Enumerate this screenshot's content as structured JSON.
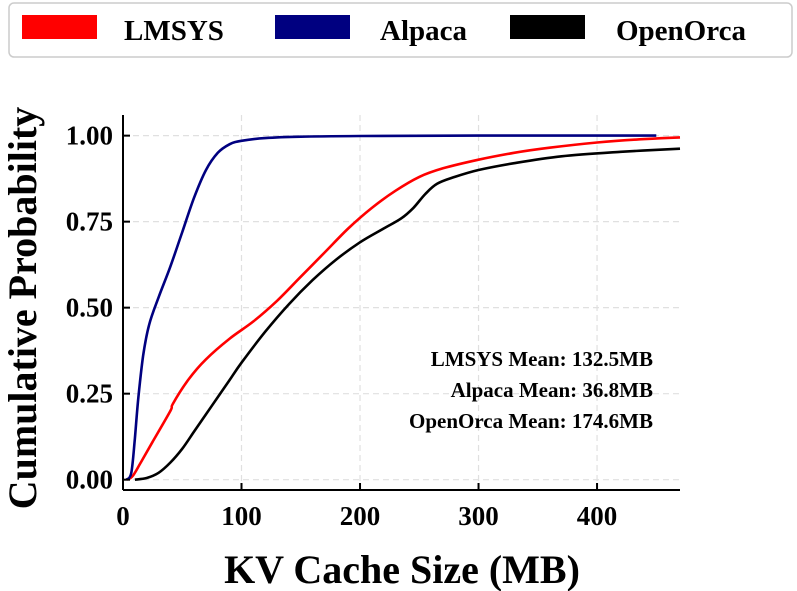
{
  "chart_data": {
    "type": "line",
    "title": "",
    "xlabel": "KV Cache Size (MB)",
    "ylabel": "Cumulative Probability",
    "xlim": [
      0,
      470
    ],
    "ylim": [
      -0.03,
      1.06
    ],
    "xticks": [
      0,
      100,
      200,
      300,
      400
    ],
    "yticks": [
      0.0,
      0.25,
      0.5,
      0.75,
      1.0
    ],
    "xtick_labels": [
      "0",
      "100",
      "200",
      "300",
      "400"
    ],
    "ytick_labels": [
      "0.00",
      "0.25",
      "0.50",
      "0.75",
      "1.00"
    ],
    "grid": true,
    "legend_position": "top",
    "series": [
      {
        "name": "LMSYS",
        "color": "#ff0000",
        "x": [
          3,
          8,
          15,
          25,
          40,
          42,
          55,
          70,
          90,
          110,
          130,
          150,
          170,
          190,
          210,
          230,
          250,
          270,
          300,
          330,
          360,
          400,
          440,
          470
        ],
        "y": [
          0.0,
          0.01,
          0.05,
          0.11,
          0.2,
          0.22,
          0.29,
          0.35,
          0.41,
          0.46,
          0.52,
          0.59,
          0.66,
          0.73,
          0.79,
          0.84,
          0.88,
          0.905,
          0.93,
          0.95,
          0.965,
          0.98,
          0.99,
          0.995
        ]
      },
      {
        "name": "Alpaca",
        "color": "#000080",
        "x": [
          3,
          7,
          10,
          13,
          17,
          22,
          30,
          40,
          50,
          60,
          70,
          80,
          90,
          100,
          120,
          150,
          200,
          300,
          450
        ],
        "y": [
          0.0,
          0.02,
          0.12,
          0.24,
          0.36,
          0.45,
          0.53,
          0.62,
          0.72,
          0.82,
          0.9,
          0.95,
          0.975,
          0.985,
          0.993,
          0.997,
          0.999,
          1.0,
          1.0
        ]
      },
      {
        "name": "OpenOrca",
        "color": "#000000",
        "x": [
          10,
          20,
          30,
          40,
          50,
          60,
          70,
          80,
          90,
          100,
          120,
          140,
          160,
          180,
          200,
          220,
          235,
          245,
          255,
          265,
          280,
          300,
          330,
          370,
          420,
          470
        ],
        "y": [
          0.0,
          0.005,
          0.02,
          0.05,
          0.09,
          0.14,
          0.19,
          0.24,
          0.29,
          0.34,
          0.43,
          0.51,
          0.58,
          0.64,
          0.69,
          0.73,
          0.76,
          0.79,
          0.83,
          0.86,
          0.88,
          0.9,
          0.92,
          0.94,
          0.953,
          0.962
        ]
      }
    ],
    "annotations": [
      "LMSYS Mean: 132.5MB",
      "Alpaca Mean: 36.8MB",
      "OpenOrca Mean: 174.6MB"
    ]
  }
}
